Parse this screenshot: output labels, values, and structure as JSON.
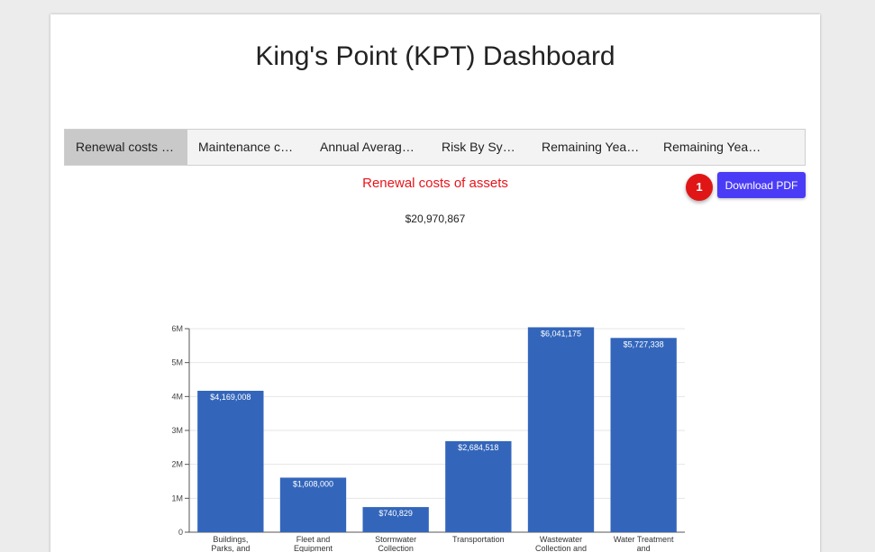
{
  "dashboard": {
    "title": "King's Point (KPT) Dashboard"
  },
  "tabs": [
    {
      "label": "Renewal costs of assets",
      "active": true
    },
    {
      "label": "Maintenance costs",
      "active": false
    },
    {
      "label": "Annual Average Investment",
      "active": false
    },
    {
      "label": "Risk By System",
      "active": false
    },
    {
      "label": "Remaining Years of Life",
      "active": false
    },
    {
      "label": "Remaining Years of Life",
      "active": false
    }
  ],
  "section": {
    "title": "Renewal costs of assets",
    "total": "$20,970,867"
  },
  "actions": {
    "download_label": "Download PDF",
    "badge": "1"
  },
  "chart_data": {
    "type": "bar",
    "categories": [
      [
        "Buildings,",
        "Parks, and"
      ],
      [
        "Fleet and",
        "Equipment"
      ],
      [
        "Stormwater",
        "Collection"
      ],
      [
        "Transportation"
      ],
      [
        "Wastewater",
        "Collection and"
      ],
      [
        "Water Treatment",
        "and"
      ]
    ],
    "values": [
      4169008,
      1608000,
      740829,
      2684518,
      6041175,
      5727338
    ],
    "data_labels": [
      "$4,169,008",
      "$1,608,000",
      "$740,829",
      "$2,684,518",
      "$6,041,175",
      "$5,727,338"
    ],
    "ylim": [
      0,
      6000000
    ],
    "yticks": [
      0,
      1000000,
      2000000,
      3000000,
      4000000,
      5000000,
      6000000
    ],
    "ytick_labels": [
      "0",
      "1M",
      "2M",
      "3M",
      "4M",
      "5M",
      "6M"
    ],
    "bar_color": "#3366bb",
    "grid": true
  }
}
